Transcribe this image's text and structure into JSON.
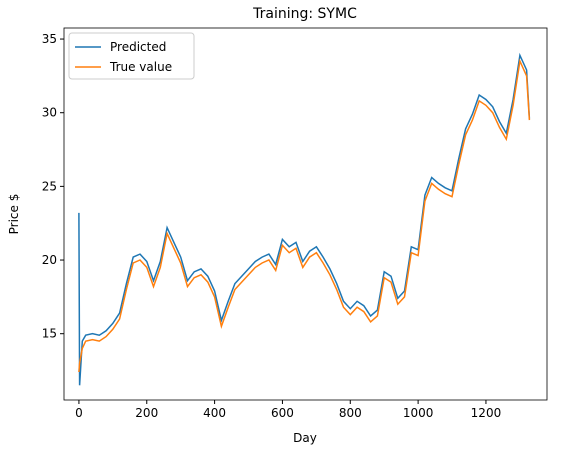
{
  "chart_data": {
    "type": "line",
    "title": "Training: SYMC",
    "xlabel": "Day",
    "ylabel": "Price $",
    "x": [
      0,
      2,
      10,
      20,
      40,
      60,
      80,
      100,
      120,
      140,
      160,
      180,
      200,
      220,
      240,
      260,
      280,
      300,
      320,
      340,
      360,
      380,
      400,
      420,
      440,
      460,
      480,
      500,
      520,
      540,
      560,
      580,
      600,
      620,
      640,
      660,
      680,
      700,
      720,
      740,
      760,
      780,
      800,
      820,
      840,
      860,
      880,
      900,
      920,
      940,
      960,
      980,
      1000,
      1020,
      1040,
      1060,
      1080,
      1100,
      1120,
      1140,
      1160,
      1180,
      1200,
      1220,
      1240,
      1260,
      1280,
      1300,
      1320,
      1328
    ],
    "series": [
      {
        "name": "Predicted",
        "color": "#1f77b4",
        "values": [
          23.2,
          11.5,
          14.5,
          14.9,
          15.0,
          14.9,
          15.2,
          15.7,
          16.4,
          18.4,
          20.2,
          20.4,
          19.9,
          18.6,
          19.9,
          22.2,
          21.2,
          20.2,
          18.6,
          19.2,
          19.4,
          18.9,
          17.9,
          15.9,
          17.2,
          18.4,
          18.9,
          19.4,
          19.9,
          20.2,
          20.4,
          19.7,
          21.4,
          20.9,
          21.2,
          19.9,
          20.6,
          20.9,
          20.2,
          19.4,
          18.4,
          17.2,
          16.7,
          17.2,
          16.9,
          16.2,
          16.6,
          19.2,
          18.9,
          17.4,
          17.9,
          20.9,
          20.7,
          24.4,
          25.6,
          25.2,
          24.9,
          24.7,
          26.9,
          28.9,
          29.9,
          31.2,
          30.9,
          30.4,
          29.4,
          28.6,
          30.9,
          33.9,
          32.9,
          29.6
        ]
      },
      {
        "name": "True value",
        "color": "#ff7f0e",
        "values": [
          12.4,
          13.0,
          14.0,
          14.5,
          14.6,
          14.5,
          14.8,
          15.3,
          16.0,
          18.0,
          19.8,
          20.0,
          19.5,
          18.2,
          19.5,
          21.8,
          20.8,
          19.8,
          18.2,
          18.8,
          19.0,
          18.5,
          17.5,
          15.5,
          16.8,
          18.0,
          18.5,
          19.0,
          19.5,
          19.8,
          20.0,
          19.3,
          21.0,
          20.5,
          20.8,
          19.5,
          20.2,
          20.5,
          19.8,
          19.0,
          18.0,
          16.8,
          16.3,
          16.8,
          16.5,
          15.8,
          16.2,
          18.8,
          18.5,
          17.0,
          17.5,
          20.5,
          20.3,
          24.0,
          25.2,
          24.8,
          24.5,
          24.3,
          26.5,
          28.5,
          29.5,
          30.8,
          30.5,
          30.0,
          29.0,
          28.2,
          30.5,
          33.5,
          32.5,
          29.5
        ]
      }
    ],
    "xlim": [
      -44,
      1380
    ],
    "xticks": [
      0,
      200,
      400,
      600,
      800,
      1000,
      1200
    ],
    "ylim": [
      10.5,
      35.75
    ],
    "yticks": [
      15,
      20,
      25,
      30,
      35
    ],
    "legend": "upper left"
  }
}
